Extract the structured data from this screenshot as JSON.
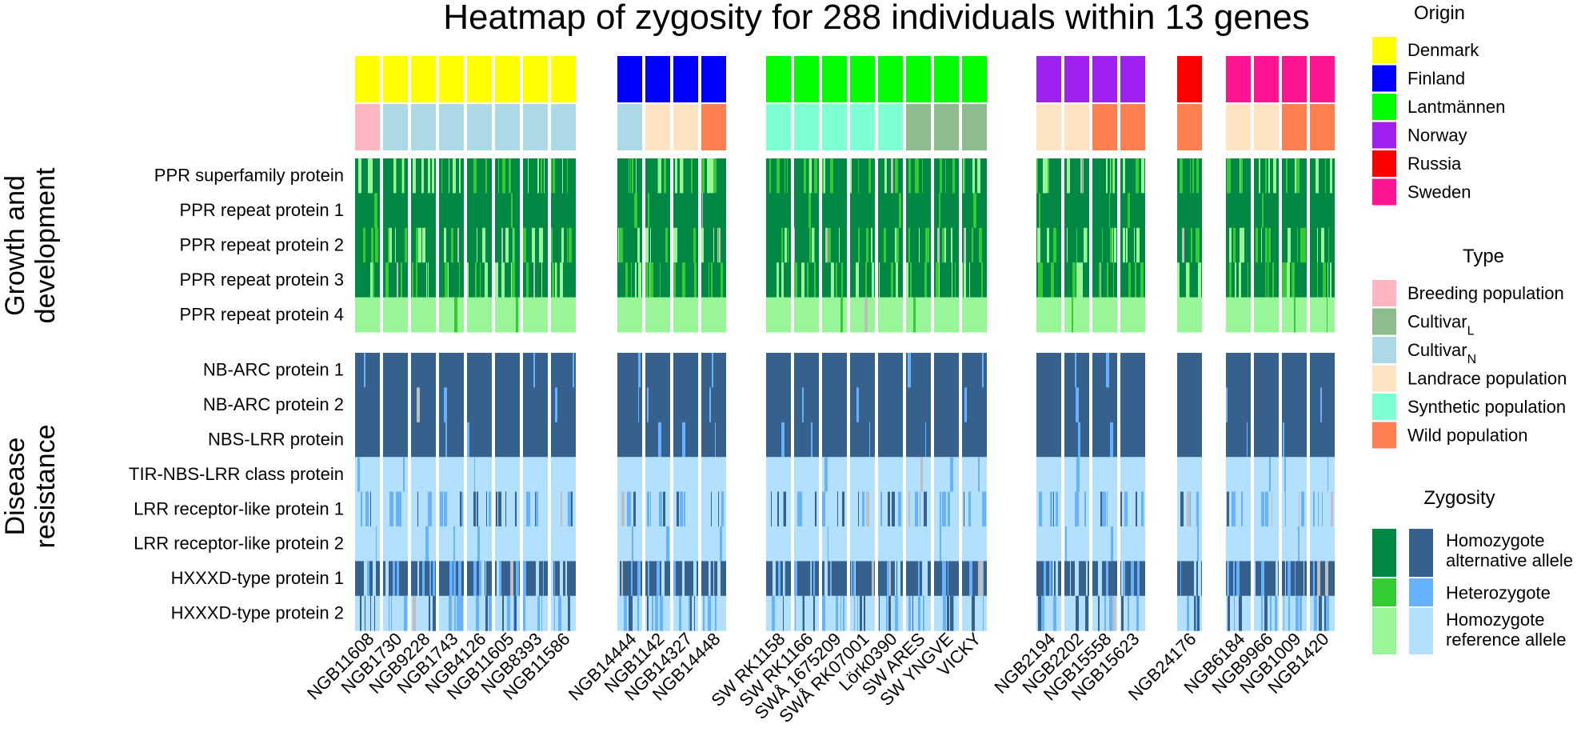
{
  "chart_data": {
    "type": "heatmap",
    "title": "Heatmap of zygosity for 288 individuals within 13 genes",
    "n_individuals": 288,
    "n_genes": 13,
    "gene_groups": [
      {
        "name": "Growth and development",
        "label_lines": [
          "Growth and",
          "development"
        ],
        "genes": [
          "PPR superfamily protein",
          "PPR repeat protein 1",
          "PPR repeat protein 2",
          "PPR repeat protein 3",
          "PPR repeat protein 4"
        ]
      },
      {
        "name": "Disease resistance",
        "label_lines": [
          "Disease",
          "resistance"
        ],
        "genes": [
          "NB-ARC protein 1",
          "NB-ARC protein 2",
          "NBS-LRR protein",
          "TIR-NBS-LRR class protein",
          "LRR receptor-like protein 1",
          "LRR receptor-like protein 2",
          "HXXXD-type protein 1",
          "HXXXD-type protein 2"
        ]
      }
    ],
    "column_blocks": [
      [
        "NGB11608",
        "NGB1730",
        "NGB9228",
        "NGB1743",
        "NGB4126",
        "NGB11605",
        "NGB8393",
        "NGB11586"
      ],
      [
        "NGB14444",
        "NGB1142",
        "NGB14327",
        "NGB14448"
      ],
      [
        "SW RK1158",
        "SW RK1166",
        "SWÅ 1675209",
        "SWÅ RK07001",
        "Lörk0390",
        "SW ARES",
        "SW YNGVE",
        "VICKY"
      ],
      [
        "NGB2194",
        "NGB2202",
        "NGB15558",
        "NGB15623"
      ],
      [
        "NGB24176"
      ],
      [
        "NGB6184",
        "NGB9966",
        "NGB1009",
        "NGB1420"
      ]
    ],
    "accessions": [
      {
        "name": "NGB11608",
        "origin": "Denmark",
        "type": "Breeding population"
      },
      {
        "name": "NGB1730",
        "origin": "Denmark",
        "type": "Cultivar_N"
      },
      {
        "name": "NGB9228",
        "origin": "Denmark",
        "type": "Cultivar_N"
      },
      {
        "name": "NGB1743",
        "origin": "Denmark",
        "type": "Cultivar_N"
      },
      {
        "name": "NGB4126",
        "origin": "Denmark",
        "type": "Cultivar_N"
      },
      {
        "name": "NGB11605",
        "origin": "Denmark",
        "type": "Cultivar_N"
      },
      {
        "name": "NGB8393",
        "origin": "Denmark",
        "type": "Cultivar_N"
      },
      {
        "name": "NGB11586",
        "origin": "Denmark",
        "type": "Cultivar_N"
      },
      {
        "name": "NGB14444",
        "origin": "Finland",
        "type": "Cultivar_N"
      },
      {
        "name": "NGB1142",
        "origin": "Finland",
        "type": "Landrace population"
      },
      {
        "name": "NGB14327",
        "origin": "Finland",
        "type": "Landrace population"
      },
      {
        "name": "NGB14448",
        "origin": "Finland",
        "type": "Wild population"
      },
      {
        "name": "SW RK1158",
        "origin": "Lantmännen",
        "type": "Synthetic population"
      },
      {
        "name": "SW RK1166",
        "origin": "Lantmännen",
        "type": "Synthetic population"
      },
      {
        "name": "SWÅ 1675209",
        "origin": "Lantmännen",
        "type": "Synthetic population"
      },
      {
        "name": "SWÅ RK07001",
        "origin": "Lantmännen",
        "type": "Synthetic population"
      },
      {
        "name": "Lörk0390",
        "origin": "Lantmännen",
        "type": "Synthetic population"
      },
      {
        "name": "SW ARES",
        "origin": "Lantmännen",
        "type": "Cultivar_L"
      },
      {
        "name": "SW YNGVE",
        "origin": "Lantmännen",
        "type": "Cultivar_L"
      },
      {
        "name": "VICKY",
        "origin": "Lantmännen",
        "type": "Cultivar_L"
      },
      {
        "name": "NGB2194",
        "origin": "Norway",
        "type": "Landrace population"
      },
      {
        "name": "NGB2202",
        "origin": "Norway",
        "type": "Landrace population"
      },
      {
        "name": "NGB15558",
        "origin": "Norway",
        "type": "Wild population"
      },
      {
        "name": "NGB15623",
        "origin": "Norway",
        "type": "Wild population"
      },
      {
        "name": "NGB24176",
        "origin": "Russia",
        "type": "Wild population"
      },
      {
        "name": "NGB6184",
        "origin": "Sweden",
        "type": "Landrace population"
      },
      {
        "name": "NGB9966",
        "origin": "Sweden",
        "type": "Landrace population"
      },
      {
        "name": "NGB1009",
        "origin": "Sweden",
        "type": "Wild population"
      },
      {
        "name": "NGB1420",
        "origin": "Sweden",
        "type": "Wild population"
      }
    ],
    "gene_summary": [
      {
        "gene": "PPR superfamily protein",
        "predominant": "Homozygote alternative allele",
        "mixed": true
      },
      {
        "gene": "PPR repeat protein 1",
        "predominant": "Homozygote alternative allele",
        "mixed": false
      },
      {
        "gene": "PPR repeat protein 2",
        "predominant": "Homozygote alternative allele",
        "mixed": true
      },
      {
        "gene": "PPR repeat protein 3",
        "predominant": "Homozygote alternative allele",
        "mixed": true
      },
      {
        "gene": "PPR repeat protein 4",
        "predominant": "Homozygote reference allele",
        "mixed": false
      },
      {
        "gene": "NB-ARC protein 1",
        "predominant": "Homozygote alternative allele",
        "mixed": false
      },
      {
        "gene": "NB-ARC protein 2",
        "predominant": "Homozygote alternative allele",
        "mixed": false
      },
      {
        "gene": "NBS-LRR protein",
        "predominant": "Homozygote alternative allele",
        "mixed": false
      },
      {
        "gene": "TIR-NBS-LRR class protein",
        "predominant": "Homozygote reference allele",
        "mixed": false
      },
      {
        "gene": "LRR receptor-like protein 1",
        "predominant": "Homozygote reference allele",
        "mixed": true
      },
      {
        "gene": "LRR receptor-like protein 2",
        "predominant": "Homozygote reference allele",
        "mixed": false
      },
      {
        "gene": "HXXXD-type protein 1",
        "predominant": "Homozygote alternative allele",
        "mixed": true
      },
      {
        "gene": "HXXXD-type protein 2",
        "predominant": "Homozygote reference allele",
        "mixed": true
      }
    ],
    "legend": {
      "origin": {
        "title": "Origin",
        "entries": [
          {
            "label": "Denmark",
            "color": "#FFFF00"
          },
          {
            "label": "Finland",
            "color": "#0000FF"
          },
          {
            "label": "Lantmännen",
            "color": "#00FF00"
          },
          {
            "label": "Norway",
            "color": "#A020F0"
          },
          {
            "label": "Russia",
            "color": "#FF0000"
          },
          {
            "label": "Sweden",
            "color": "#FF1493"
          }
        ]
      },
      "type": {
        "title": "Type",
        "entries": [
          {
            "key": "Breeding population",
            "label": "Breeding population",
            "sub": "",
            "color": "#FFB6C1"
          },
          {
            "key": "Cultivar_L",
            "label": "Cultivar",
            "sub": "L",
            "color": "#8FBC8F"
          },
          {
            "key": "Cultivar_N",
            "label": "Cultivar",
            "sub": "N",
            "color": "#ADD8E6"
          },
          {
            "key": "Landrace population",
            "label": "Landrace population",
            "sub": "",
            "color": "#FFE4C4"
          },
          {
            "key": "Synthetic population",
            "label": "Synthetic population",
            "sub": "",
            "color": "#7FFFD4"
          },
          {
            "key": "Wild population",
            "label": "Wild population",
            "sub": "",
            "color": "#FF7F50"
          }
        ]
      },
      "zygosity": {
        "title": "Zygosity",
        "entries": [
          {
            "label_lines": [
              "Homozygote",
              "alternative allele"
            ],
            "growth_color": "#008844",
            "disease_color": "#35618C"
          },
          {
            "label_lines": [
              "Heterozygote"
            ],
            "growth_color": "#33CC33",
            "disease_color": "#66B2FF"
          },
          {
            "label_lines": [
              "Homozygote",
              "reference allele"
            ],
            "growth_color": "#98F598",
            "disease_color": "#B3E0FF"
          }
        ],
        "missing_color": "#BEBEBE"
      }
    }
  }
}
